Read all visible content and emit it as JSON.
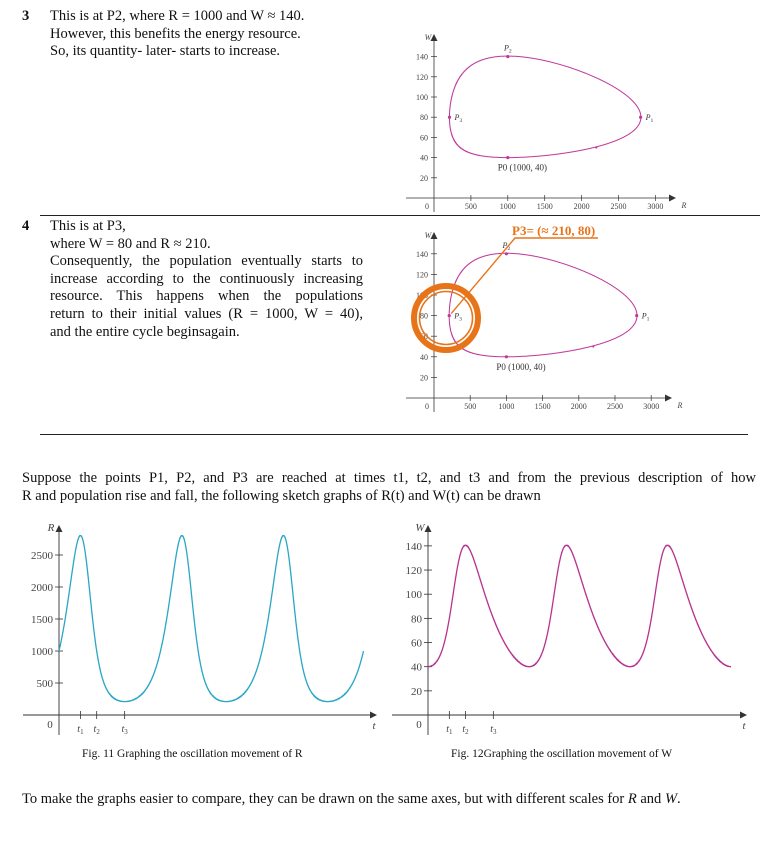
{
  "items": [
    {
      "number": "3",
      "lines": [
        "This is at P2, where R = 1000 and W ≈ 140.",
        "However, this benefits the energy resource.",
        "So, its quantity- later- starts to increase."
      ]
    },
    {
      "number": "4",
      "lines": [
        "This is at P3,",
        "where W = 80 and R ≈ 210.",
        "Consequently, the population eventually starts to",
        "increase according to the continuously increasing",
        "resource. This happens when the populations",
        "return to their initial values (R = 1000, W = 40),",
        "and the entire cycle beginsagain."
      ]
    }
  ],
  "paragraph": {
    "lines": [
      "Suppose the points P1, P2, and P3 are reached at times t1, t2, and t3 and from the previous description of how",
      "R and population rise and fall, the following sketch graphs of R(t) and W(t) can be drawn"
    ]
  },
  "annotation": {
    "label": "P3= (≈ 210, 80)",
    "color": "#e8741a"
  },
  "captions": {
    "fig11": "Fig. 11 Graphing the oscillation movement of R",
    "fig12": "Fig. 12Graphing the oscillation movement of W"
  },
  "closing": {
    "before": "To make the graphs easier to compare, they can be drawn on the same axes, but with different scales for ",
    "r": "R",
    "and": " and ",
    "w": "W",
    "after": "."
  },
  "colors": {
    "phase_curve": "#c0399a",
    "r_curve": "#2aa6c6",
    "w_curve": "#b8338f",
    "axis": "#333333"
  },
  "chart_data": [
    {
      "type": "line",
      "id": "phase-1",
      "xlabel": "R",
      "ylabel": "W",
      "origin_label": "0",
      "xticks": [
        500,
        1000,
        1500,
        2000,
        2500,
        3000
      ],
      "yticks": [
        20,
        40,
        60,
        80,
        100,
        120,
        140
      ],
      "xlim": [
        0,
        3150
      ],
      "ylim": [
        0,
        160
      ],
      "points": [
        {
          "name": "P0",
          "label": "P0 (1000, 40)",
          "R": 1000,
          "W": 40
        },
        {
          "name": "P1",
          "label": "P1",
          "R": 2800,
          "W": 80
        },
        {
          "name": "P2",
          "label": "P2",
          "R": 1000,
          "W": 140
        },
        {
          "name": "P3",
          "label": "P3",
          "R": 210,
          "W": 80
        }
      ],
      "direction_marker": {
        "R": 2200,
        "W": 50
      }
    },
    {
      "type": "line",
      "id": "phase-2",
      "xlabel": "R",
      "ylabel": "W",
      "origin_label": "0",
      "xticks": [
        500,
        1000,
        1500,
        2000,
        2500,
        3000
      ],
      "yticks": [
        20,
        40,
        60,
        80,
        100,
        120,
        140
      ],
      "xlim": [
        0,
        3150
      ],
      "ylim": [
        0,
        160
      ],
      "points": [
        {
          "name": "P0",
          "label": "P0 (1000, 40)",
          "R": 1000,
          "W": 40
        },
        {
          "name": "P1",
          "label": "P1",
          "R": 2800,
          "W": 80
        },
        {
          "name": "P2",
          "label": "P2",
          "R": 1000,
          "W": 140
        },
        {
          "name": "P3",
          "label": "P3",
          "R": 210,
          "W": 80
        }
      ],
      "direction_marker": {
        "R": 2200,
        "W": 50
      },
      "highlight": "P3"
    },
    {
      "type": "line",
      "id": "r-of-t",
      "xlabel": "t",
      "ylabel": "R",
      "origin_label": "0",
      "yticks": [
        500,
        1000,
        1500,
        2000,
        2500
      ],
      "xtick_labels": [
        "t1",
        "t2",
        "t3"
      ],
      "ylim": [
        0,
        2900
      ],
      "periods": 3,
      "start": 1000,
      "max": 2800,
      "min": 210
    },
    {
      "type": "line",
      "id": "w-of-t",
      "xlabel": "t",
      "ylabel": "W",
      "origin_label": "0",
      "yticks": [
        20,
        40,
        60,
        80,
        100,
        120,
        140
      ],
      "xtick_labels": [
        "t1",
        "t2",
        "t3"
      ],
      "ylim": [
        0,
        150
      ],
      "periods": 3,
      "start": 40,
      "max": 140,
      "min": 40
    }
  ]
}
